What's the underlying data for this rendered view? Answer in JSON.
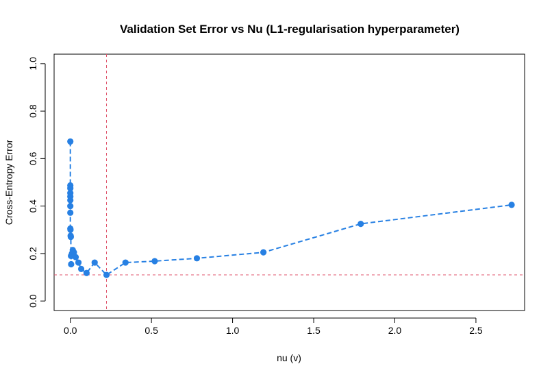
{
  "chart_data": {
    "type": "line",
    "title": "Validation Set Error vs Nu (L1-regularisation hyperparameter)",
    "xlabel": "nu (v)",
    "ylabel": "Cross-Entropy Error",
    "xlim": [
      -0.1,
      2.8
    ],
    "ylim": [
      -0.04,
      1.04
    ],
    "xticks": [
      0.0,
      0.5,
      1.0,
      1.5,
      2.0,
      2.5
    ],
    "xtick_labels": [
      "0.0",
      "0.5",
      "1.0",
      "1.5",
      "2.0",
      "2.5"
    ],
    "yticks": [
      0.0,
      0.2,
      0.4,
      0.6,
      0.8,
      1.0
    ],
    "ytick_labels": [
      "0.0",
      "0.2",
      "0.4",
      "0.6",
      "0.8",
      "1.0"
    ],
    "grid": false,
    "series": [
      {
        "color": "#2780e3",
        "line_style": "dashed",
        "marker": "filled-circle",
        "x": [
          0.0,
          0.0,
          0.0,
          0.0,
          0.0,
          0.0,
          0.0,
          0.0,
          0.0,
          0.001,
          0.002,
          0.003,
          0.004,
          0.005,
          0.007,
          0.01,
          0.015,
          0.022,
          0.033,
          0.05,
          0.067,
          0.1,
          0.15,
          0.223,
          0.34,
          0.52,
          0.78,
          1.19,
          1.79,
          2.72
        ],
        "y": [
          0.672,
          0.487,
          0.475,
          0.455,
          0.44,
          0.425,
          0.4,
          0.372,
          0.305,
          0.3,
          0.275,
          0.27,
          0.19,
          0.155,
          0.19,
          0.2,
          0.215,
          0.205,
          0.185,
          0.162,
          0.135,
          0.118,
          0.162,
          0.11,
          0.162,
          0.168,
          0.18,
          0.205,
          0.325,
          0.405
        ]
      }
    ],
    "reference_lines": [
      {
        "orientation": "vertical",
        "value": 0.223,
        "color": "#df536b",
        "style": "dashed"
      },
      {
        "orientation": "horizontal",
        "value": 0.11,
        "color": "#df536b",
        "style": "dashed"
      }
    ]
  }
}
